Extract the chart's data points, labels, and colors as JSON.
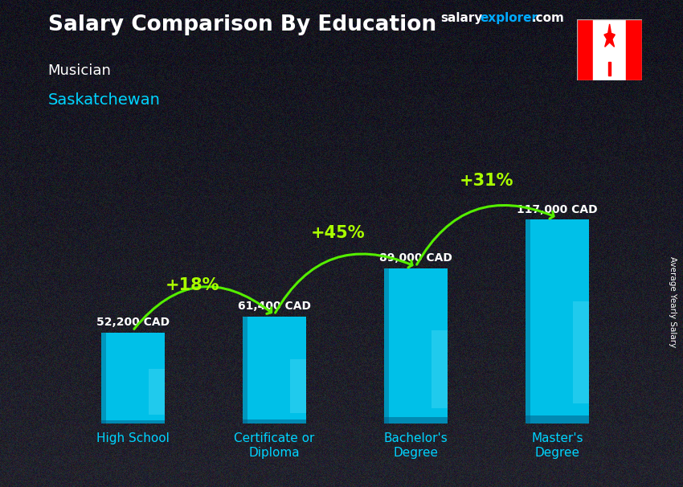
{
  "title": "Salary Comparison By Education",
  "subtitle_job": "Musician",
  "subtitle_location": "Saskatchewan",
  "ylabel": "Average Yearly Salary",
  "categories": [
    "High School",
    "Certificate or\nDiploma",
    "Bachelor's\nDegree",
    "Master's\nDegree"
  ],
  "values": [
    52200,
    61400,
    89000,
    117000
  ],
  "labels": [
    "52,200 CAD",
    "61,400 CAD",
    "89,000 CAD",
    "117,000 CAD"
  ],
  "pct_labels": [
    "+18%",
    "+45%",
    "+31%"
  ],
  "bar_color": "#00c0e8",
  "bar_edge_color": "#008ab0",
  "background_color": "#1a1a2e",
  "title_color": "#ffffff",
  "subtitle_job_color": "#ffffff",
  "subtitle_location_color": "#00d4ff",
  "label_color": "#ffffff",
  "pct_color": "#aaff00",
  "arrow_color": "#55ee00",
  "xtick_color": "#00d4ff",
  "brand_salary_color": "#ffffff",
  "brand_explorer_color": "#00aaff",
  "brand_com_color": "#ffffff",
  "ylabel_color": "#ffffff",
  "ylim": [
    0,
    145000
  ],
  "bar_width": 0.45
}
